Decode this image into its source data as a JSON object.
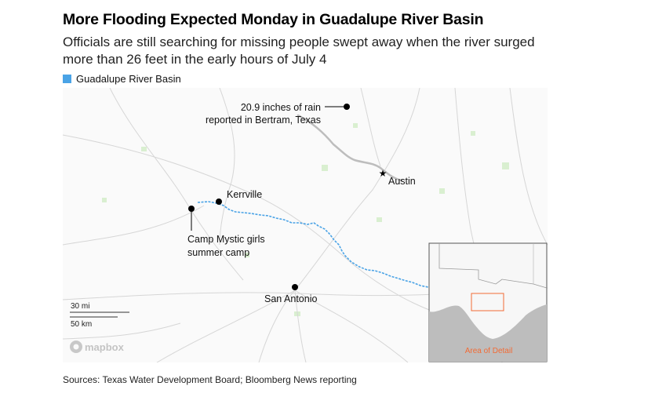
{
  "header": {
    "title": "More Flooding Expected Monday in Guadalupe River Basin",
    "subtitle": "Officials are still searching for missing people swept away when the river surged more than 26 feet in the early hours of July 4"
  },
  "legend": {
    "label": "Guadalupe River Basin",
    "color": "#4aa3e6"
  },
  "map": {
    "places": {
      "bertram": {
        "line1": "20.9 inches of rain",
        "line2": "reported in Bertram, Texas"
      },
      "austin": {
        "label": "Austin"
      },
      "kerrville": {
        "label": "Kerrville"
      },
      "camp": {
        "line1": "Camp Mystic girls",
        "line2": "summer camp"
      },
      "san_antonio": {
        "label": "San Antonio"
      }
    },
    "scale": {
      "miles_label": "30 mi",
      "km_label": "50 km"
    },
    "attribution": "mapbox",
    "inset": {
      "label": "Area of Detail",
      "highlight_color": "#f26b35"
    },
    "river_color": "#4aa3e6",
    "road_color": "#d6d6d6",
    "park_color": "#d9efd0",
    "water_color": "#bdbdbd"
  },
  "footer": {
    "source": "Sources: Texas Water Development Board; Bloomberg News reporting"
  }
}
